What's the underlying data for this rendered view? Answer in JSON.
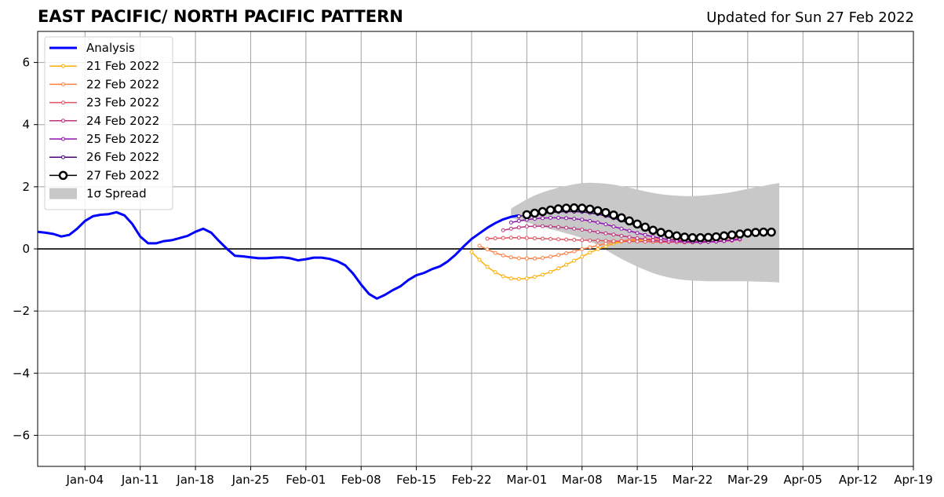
{
  "chart_data": {
    "type": "line",
    "title": "EAST PACIFIC/ NORTH PACIFIC PATTERN",
    "subtitle": "Updated for Sun 27 Feb 2022",
    "xlabel": "",
    "ylabel": "",
    "x_range": [
      "2021-12-29",
      "2022-04-19"
    ],
    "ylim": [
      -7,
      7
    ],
    "y_ticks": [
      -6,
      -4,
      -2,
      0,
      2,
      4,
      6
    ],
    "y_tick_labels": [
      "−6",
      "−4",
      "−2",
      "0",
      "2",
      "4",
      "6"
    ],
    "x_ticks": [
      "2022-01-04",
      "2022-01-11",
      "2022-01-18",
      "2022-01-25",
      "2022-02-01",
      "2022-02-08",
      "2022-02-15",
      "2022-02-22",
      "2022-03-01",
      "2022-03-08",
      "2022-03-15",
      "2022-03-22",
      "2022-03-29",
      "2022-04-05",
      "2022-04-12",
      "2022-04-19"
    ],
    "x_tick_labels": [
      "Jan-04",
      "Jan-11",
      "Jan-18",
      "Jan-25",
      "Feb-01",
      "Feb-08",
      "Feb-15",
      "Feb-22",
      "Mar-01",
      "Mar-08",
      "Mar-15",
      "Mar-22",
      "Mar-29",
      "Apr-05",
      "Apr-12",
      "Apr-19"
    ],
    "grid": true,
    "legend_position": "top-left",
    "analysis": {
      "name": "Analysis",
      "color": "#0000ff",
      "start": "2021-12-29",
      "values": [
        0.55,
        0.52,
        0.48,
        0.4,
        0.45,
        0.65,
        0.9,
        1.05,
        1.1,
        1.12,
        1.18,
        1.08,
        0.8,
        0.4,
        0.18,
        0.18,
        0.25,
        0.28,
        0.35,
        0.42,
        0.55,
        0.65,
        0.52,
        0.25,
        0.0,
        -0.22,
        -0.24,
        -0.27,
        -0.3,
        -0.3,
        -0.28,
        -0.27,
        -0.3,
        -0.37,
        -0.33,
        -0.28,
        -0.28,
        -0.32,
        -0.4,
        -0.53,
        -0.8,
        -1.15,
        -1.45,
        -1.6,
        -1.48,
        -1.33,
        -1.2,
        -1.0,
        -0.85,
        -0.77,
        -0.65,
        -0.56,
        -0.4,
        -0.18,
        0.08,
        0.32,
        0.5,
        0.68,
        0.83,
        0.95,
        1.03,
        1.08
      ]
    },
    "forecasts": [
      {
        "name": "21 Feb 2022",
        "color": "#ffb000",
        "start": "2022-02-22",
        "values": [
          -0.1,
          -0.35,
          -0.58,
          -0.75,
          -0.88,
          -0.95,
          -0.97,
          -0.95,
          -0.9,
          -0.83,
          -0.74,
          -0.63,
          -0.51,
          -0.38,
          -0.25,
          -0.12,
          -0.01,
          0.09,
          0.17,
          0.23,
          0.26,
          0.28,
          0.28,
          0.27,
          0.25,
          0.23,
          0.22,
          0.21,
          0.21,
          0.22,
          0.23,
          0.25,
          0.27,
          0.3,
          0.33
        ]
      },
      {
        "name": "22 Feb 2022",
        "color": "#ff7f3f",
        "start": "2022-02-23",
        "values": [
          0.1,
          -0.02,
          -0.13,
          -0.21,
          -0.27,
          -0.3,
          -0.31,
          -0.31,
          -0.29,
          -0.25,
          -0.2,
          -0.14,
          -0.08,
          -0.01,
          0.05,
          0.11,
          0.17,
          0.22,
          0.26,
          0.29,
          0.31,
          0.32,
          0.32,
          0.32,
          0.31,
          0.3,
          0.29,
          0.29,
          0.29,
          0.3,
          0.32,
          0.34,
          0.36,
          0.39
        ]
      },
      {
        "name": "23 Feb 2022",
        "color": "#e05060",
        "start": "2022-02-24",
        "values": [
          0.33,
          0.34,
          0.35,
          0.36,
          0.36,
          0.35,
          0.34,
          0.33,
          0.32,
          0.31,
          0.3,
          0.29,
          0.28,
          0.27,
          0.27,
          0.26,
          0.25,
          0.25,
          0.24,
          0.24,
          0.23,
          0.23,
          0.22,
          0.22,
          0.22,
          0.22,
          0.22,
          0.23,
          0.24,
          0.25,
          0.26,
          0.27
        ]
      },
      {
        "name": "24 Feb 2022",
        "color": "#c03080",
        "start": "2022-02-26",
        "values": [
          0.6,
          0.65,
          0.69,
          0.72,
          0.73,
          0.73,
          0.72,
          0.7,
          0.68,
          0.65,
          0.62,
          0.58,
          0.54,
          0.5,
          0.46,
          0.42,
          0.38,
          0.34,
          0.31,
          0.28,
          0.26,
          0.24,
          0.22,
          0.21,
          0.21,
          0.21,
          0.22,
          0.23,
          0.25,
          0.27,
          0.3
        ]
      },
      {
        "name": "25 Feb 2022",
        "color": "#9010b0",
        "start": "2022-02-27",
        "values": [
          0.85,
          0.9,
          0.94,
          0.97,
          0.99,
          1.0,
          1.0,
          0.99,
          0.97,
          0.94,
          0.9,
          0.85,
          0.79,
          0.72,
          0.65,
          0.58,
          0.51,
          0.45,
          0.39,
          0.34,
          0.3,
          0.27,
          0.24,
          0.23,
          0.22,
          0.23,
          0.24,
          0.26,
          0.29,
          0.33
        ]
      },
      {
        "name": "26 Feb 2022",
        "color": "#4b0080",
        "start": "2022-02-28",
        "values": [
          1.05,
          1.08,
          1.11,
          1.14,
          1.17,
          1.19,
          1.2,
          1.2,
          1.19,
          1.16,
          1.12,
          1.06,
          0.99,
          0.91,
          0.82,
          0.73,
          0.64,
          0.56,
          0.49,
          0.43,
          0.38,
          0.35,
          0.33,
          0.33,
          0.34,
          0.36,
          0.38,
          0.41,
          0.44
        ]
      }
    ],
    "forecast_latest": {
      "name": "27 Feb 2022",
      "color": "#000000",
      "start": "2022-03-01",
      "values": [
        1.1,
        1.15,
        1.2,
        1.25,
        1.29,
        1.31,
        1.32,
        1.31,
        1.28,
        1.23,
        1.17,
        1.09,
        1.0,
        0.9,
        0.8,
        0.7,
        0.6,
        0.53,
        0.47,
        0.42,
        0.38,
        0.36,
        0.36,
        0.37,
        0.39,
        0.42,
        0.45,
        0.48,
        0.51,
        0.53,
        0.54,
        0.54
      ]
    },
    "spread": {
      "name": "1σ Spread",
      "color": "#c8c8c8",
      "start": "2022-02-27",
      "upper": [
        1.3,
        1.45,
        1.6,
        1.72,
        1.82,
        1.9,
        1.97,
        2.03,
        2.08,
        2.12,
        2.13,
        2.12,
        2.1,
        2.07,
        2.02,
        1.97,
        1.91,
        1.85,
        1.8,
        1.76,
        1.73,
        1.71,
        1.7,
        1.7,
        1.71,
        1.73,
        1.76,
        1.79,
        1.83,
        1.88,
        1.93,
        1.98,
        2.03,
        2.08,
        2.12
      ],
      "lower": [
        1.0,
        0.92,
        0.85,
        0.78,
        0.71,
        0.64,
        0.57,
        0.5,
        0.43,
        0.35,
        0.25,
        0.12,
        -0.03,
        -0.18,
        -0.32,
        -0.45,
        -0.57,
        -0.68,
        -0.78,
        -0.86,
        -0.92,
        -0.97,
        -1.0,
        -1.02,
        -1.03,
        -1.04,
        -1.04,
        -1.04,
        -1.04,
        -1.04,
        -1.04,
        -1.05,
        -1.06,
        -1.07,
        -1.08
      ]
    }
  }
}
